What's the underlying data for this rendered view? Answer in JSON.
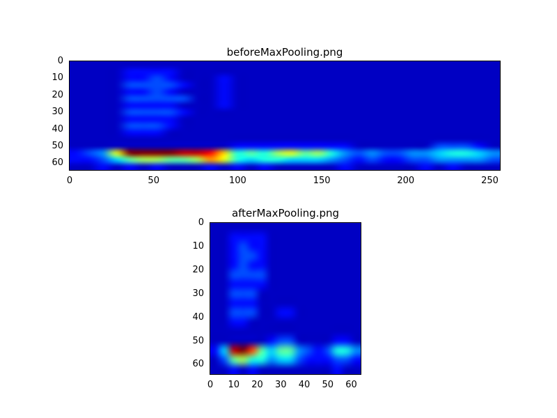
{
  "figure": {
    "background": "#ffffff",
    "colormap": "jet",
    "base_color": "#00008a"
  },
  "chart_data": [
    {
      "type": "heatmap",
      "title": "beforeMaxPooling.png",
      "colormap": "jet",
      "x_ticks": [
        0,
        50,
        100,
        150,
        200,
        250
      ],
      "y_ticks": [
        0,
        10,
        20,
        30,
        40,
        50,
        60
      ],
      "xlim": [
        0,
        256
      ],
      "ylim": [
        64,
        0
      ],
      "grid_encoding": "hex digit per cell, rows top-to-bottom, 0=min intensity, f=max intensity",
      "grid": [
        "11111111111111111111111111111111",
        "11112222111111111111111111111111",
        "11112232111211111111111111111111",
        "11113333211211111111111111111111",
        "11112232111211111111111111111111",
        "11113333311211111111111111111111",
        "11112222111211111111111111111111",
        "11113333211111111111111111111111",
        "11112222111111111111111111111111",
        "11113332111111111111111111111111",
        "11112221111111111111111111111111",
        "11111111111111111111111111111111",
        "11111111111122222222211111133321",
        "2349ffffeeda67689786434334456654",
        "2235788778b965665554323223344443",
        "11212121112121211111211111212111"
      ],
      "description": "Dark blue activation map with a bright red-yellow horizontal streak near row 55 spanning columns 25-90, a wavy cyan-green band rows 52-58 over columns 90-160, faint cyan speckles out to column 255 and faint vertical smudges around columns 30-90 in rows 5-45."
    },
    {
      "type": "heatmap",
      "title": "afterMaxPooling.png",
      "colormap": "jet",
      "x_ticks": [
        0,
        10,
        20,
        30,
        40,
        50,
        60
      ],
      "y_ticks": [
        0,
        10,
        20,
        30,
        40,
        50,
        60
      ],
      "xlim": [
        0,
        64
      ],
      "ylim": [
        64,
        0
      ],
      "grid_encoding": "hex digit per cell, rows top-to-bottom, 0=min intensity, f=max intensity",
      "grid": [
        "1111111111111111",
        "1122221111111111",
        "1123221111111111",
        "1123321111111111",
        "1123221111111111",
        "1133331111111111",
        "1122221111111111",
        "1133311111111111",
        "1122211111111111",
        "1133311221111111",
        "1122111111111111",
        "1111111111111111",
        "1111112331111221",
        "25efc75774323664",
        "1378664553222332",
        "1121211111111211"
      ],
      "description": "Pooled map: red-yellow streak near row 55 over columns 7-20, wavy green tail to column 30, cyan blobs near columns 28, 34 and 55-62, faint vertical smudges around columns 8-22 in upper rows."
    }
  ]
}
